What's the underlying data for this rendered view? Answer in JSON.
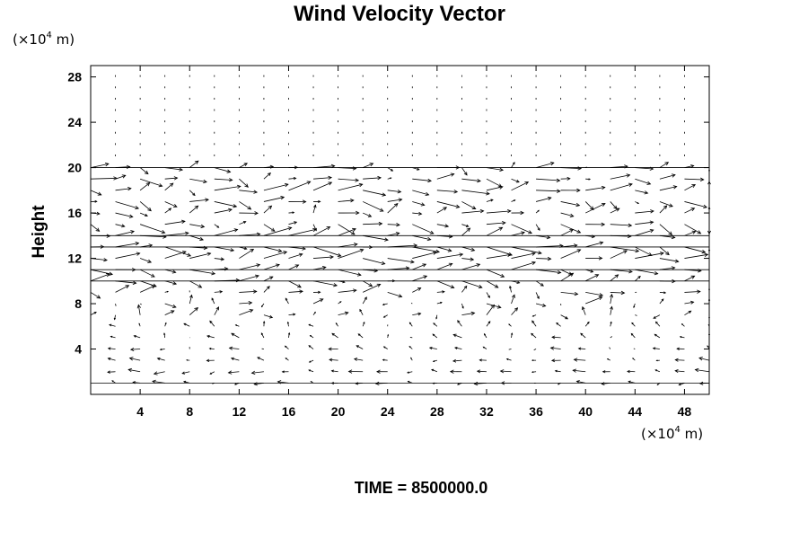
{
  "chart_data": {
    "type": "vector_field",
    "title": "Wind Velocity Vector",
    "ylabel": "Height",
    "xlabel": "",
    "y_unit": {
      "prefix": "(×10",
      "exponent": "4",
      "suffix": " m)"
    },
    "x_unit": {
      "prefix": "(×10",
      "exponent": "4",
      "suffix": " m)"
    },
    "xlim": [
      0,
      50
    ],
    "ylim": [
      0,
      29
    ],
    "x_ticks": [
      4,
      8,
      12,
      16,
      20,
      24,
      28,
      32,
      36,
      40,
      44,
      48
    ],
    "y_ticks": [
      4,
      8,
      12,
      16,
      20,
      24,
      28
    ],
    "x_tick_labels": [
      "4",
      "8",
      "12",
      "16",
      "20",
      "24",
      "28",
      "32",
      "36",
      "40",
      "44",
      "48"
    ],
    "y_tick_labels": [
      "4",
      "8",
      "12",
      "16",
      "20",
      "24",
      "28"
    ],
    "grid": false,
    "vector_grid": {
      "x_start": 0,
      "x_step": 2,
      "y_start": 1,
      "y_step": 1
    },
    "vectors_approximate": [
      {
        "y": 1,
        "u": -1.2,
        "v": 0.0
      },
      {
        "y": 2,
        "u": -1.4,
        "v": 0.0
      },
      {
        "y": 3,
        "u": -1.0,
        "v": 0.1
      },
      {
        "y": 4,
        "u": -0.8,
        "v": 0.2
      },
      {
        "y": 5,
        "u": -0.6,
        "v": 0.4
      },
      {
        "y": 6,
        "u": -0.3,
        "v": 0.6
      },
      {
        "y": 7,
        "u": 0.4,
        "v": 0.5
      },
      {
        "y": 8,
        "u": 1.0,
        "v": 0.4
      },
      {
        "y": 9,
        "u": 1.5,
        "v": 0.2
      },
      {
        "y": 10,
        "u": 2.2,
        "v": 0.1
      },
      {
        "y": 11,
        "u": 2.8,
        "v": 0.0
      },
      {
        "y": 12,
        "u": 3.0,
        "v": 0.3
      },
      {
        "y": 13,
        "u": 3.2,
        "v": -0.4
      },
      {
        "y": 14,
        "u": 3.0,
        "v": 0.5
      },
      {
        "y": 15,
        "u": 2.6,
        "v": -0.6
      },
      {
        "y": 16,
        "u": 2.2,
        "v": 0.6
      },
      {
        "y": 17,
        "u": 2.4,
        "v": -0.4
      },
      {
        "y": 18,
        "u": 2.8,
        "v": 0.3
      },
      {
        "y": 19,
        "u": 2.6,
        "v": -0.2
      },
      {
        "y": 20,
        "u": 2.0,
        "v": 0.0
      },
      {
        "y": 21,
        "u": 0.0,
        "v": 0.1
      },
      {
        "y": 22,
        "u": 0.0,
        "v": 0.1
      },
      {
        "y": 23,
        "u": 0.0,
        "v": 0.0
      },
      {
        "y": 24,
        "u": 0.0,
        "v": 0.0
      },
      {
        "y": 25,
        "u": 0.0,
        "v": 0.0
      },
      {
        "y": 26,
        "u": 0.0,
        "v": 0.0
      },
      {
        "y": 27,
        "u": 0.0,
        "v": 0.0
      },
      {
        "y": 28,
        "u": 0.0,
        "v": 0.0
      },
      {
        "y": 29,
        "u": 0.0,
        "v": 0.0
      }
    ],
    "caption": "TIME = 8500000.0",
    "colors": {
      "background": "#ffffff",
      "ink": "#000000"
    }
  }
}
